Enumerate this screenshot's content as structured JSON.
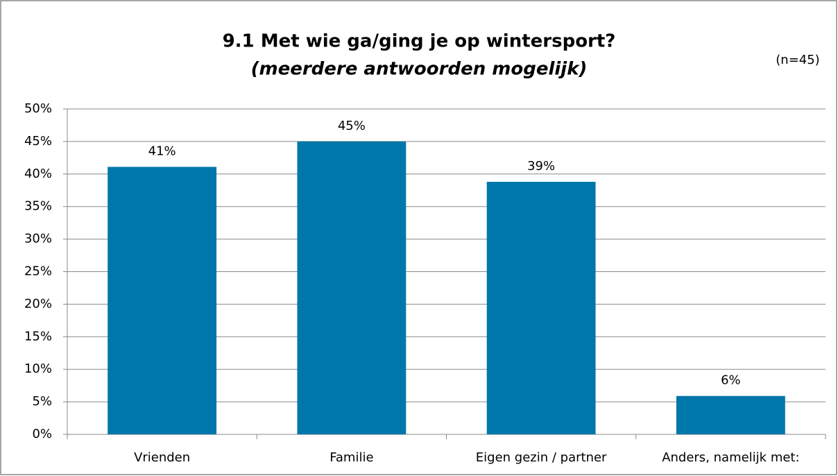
{
  "chart_data": {
    "type": "bar",
    "title": "9.1 Met wie ga/ging je op wintersport?",
    "subtitle": "(meerdere antwoorden mogelijk)",
    "annotation": "(n=45)",
    "categories": [
      "Vrienden",
      "Familie",
      "Eigen gezin / partner",
      "Anders, namelijk met:"
    ],
    "values": [
      41.1,
      45,
      38.8,
      5.9
    ],
    "value_labels": [
      "41%",
      "45%",
      "39%",
      "6%"
    ],
    "color": "#0077aa",
    "ylim": [
      0,
      50
    ],
    "yticks": [
      {
        "value": 0,
        "label": "0%"
      },
      {
        "value": 5,
        "label": "5%"
      },
      {
        "value": 10,
        "label": "10%"
      },
      {
        "value": 15,
        "label": "15%"
      },
      {
        "value": 20,
        "label": "20%"
      },
      {
        "value": 25,
        "label": "25%"
      },
      {
        "value": 30,
        "label": "30%"
      },
      {
        "value": 35,
        "label": "35%"
      },
      {
        "value": 40,
        "label": "40%"
      },
      {
        "value": 45,
        "label": "45%"
      },
      {
        "value": 50,
        "label": "50%"
      }
    ],
    "grid": true
  }
}
